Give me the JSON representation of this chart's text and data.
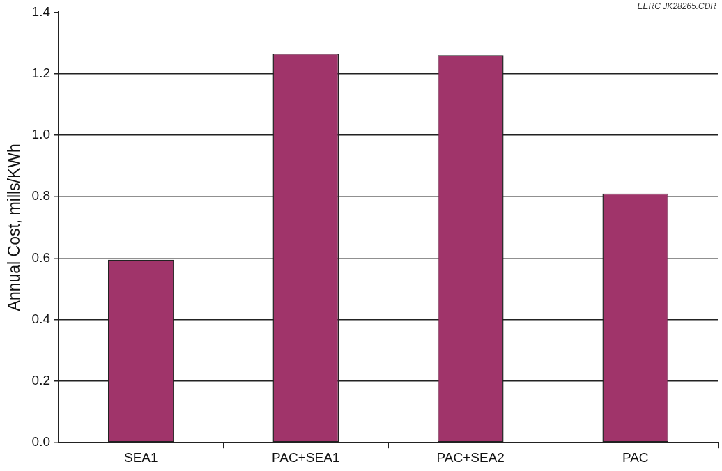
{
  "chart_data": {
    "type": "bar",
    "categories": [
      "SEA1",
      "PAC+SEA1",
      "PAC+SEA2",
      "PAC"
    ],
    "values": [
      0.595,
      1.265,
      1.26,
      0.81
    ],
    "color": "#a0346a",
    "ylabel": "Annual Cost, mills/KWh",
    "ylim": [
      0,
      1.4
    ],
    "yticks": [
      {
        "value": 0,
        "label": "0.0"
      },
      {
        "value": 0.2,
        "label": "0.2"
      },
      {
        "value": 0.4,
        "label": "0.4"
      },
      {
        "value": 0.6,
        "label": "0.6"
      },
      {
        "value": 0.8,
        "label": "0.8"
      },
      {
        "value": 1.0,
        "label": "1.0"
      },
      {
        "value": 1.2,
        "label": "1.2"
      },
      {
        "value": 1.4,
        "label": "1.4"
      }
    ],
    "grid": "y",
    "annotations": [
      "EERC JK28265.CDR"
    ]
  }
}
